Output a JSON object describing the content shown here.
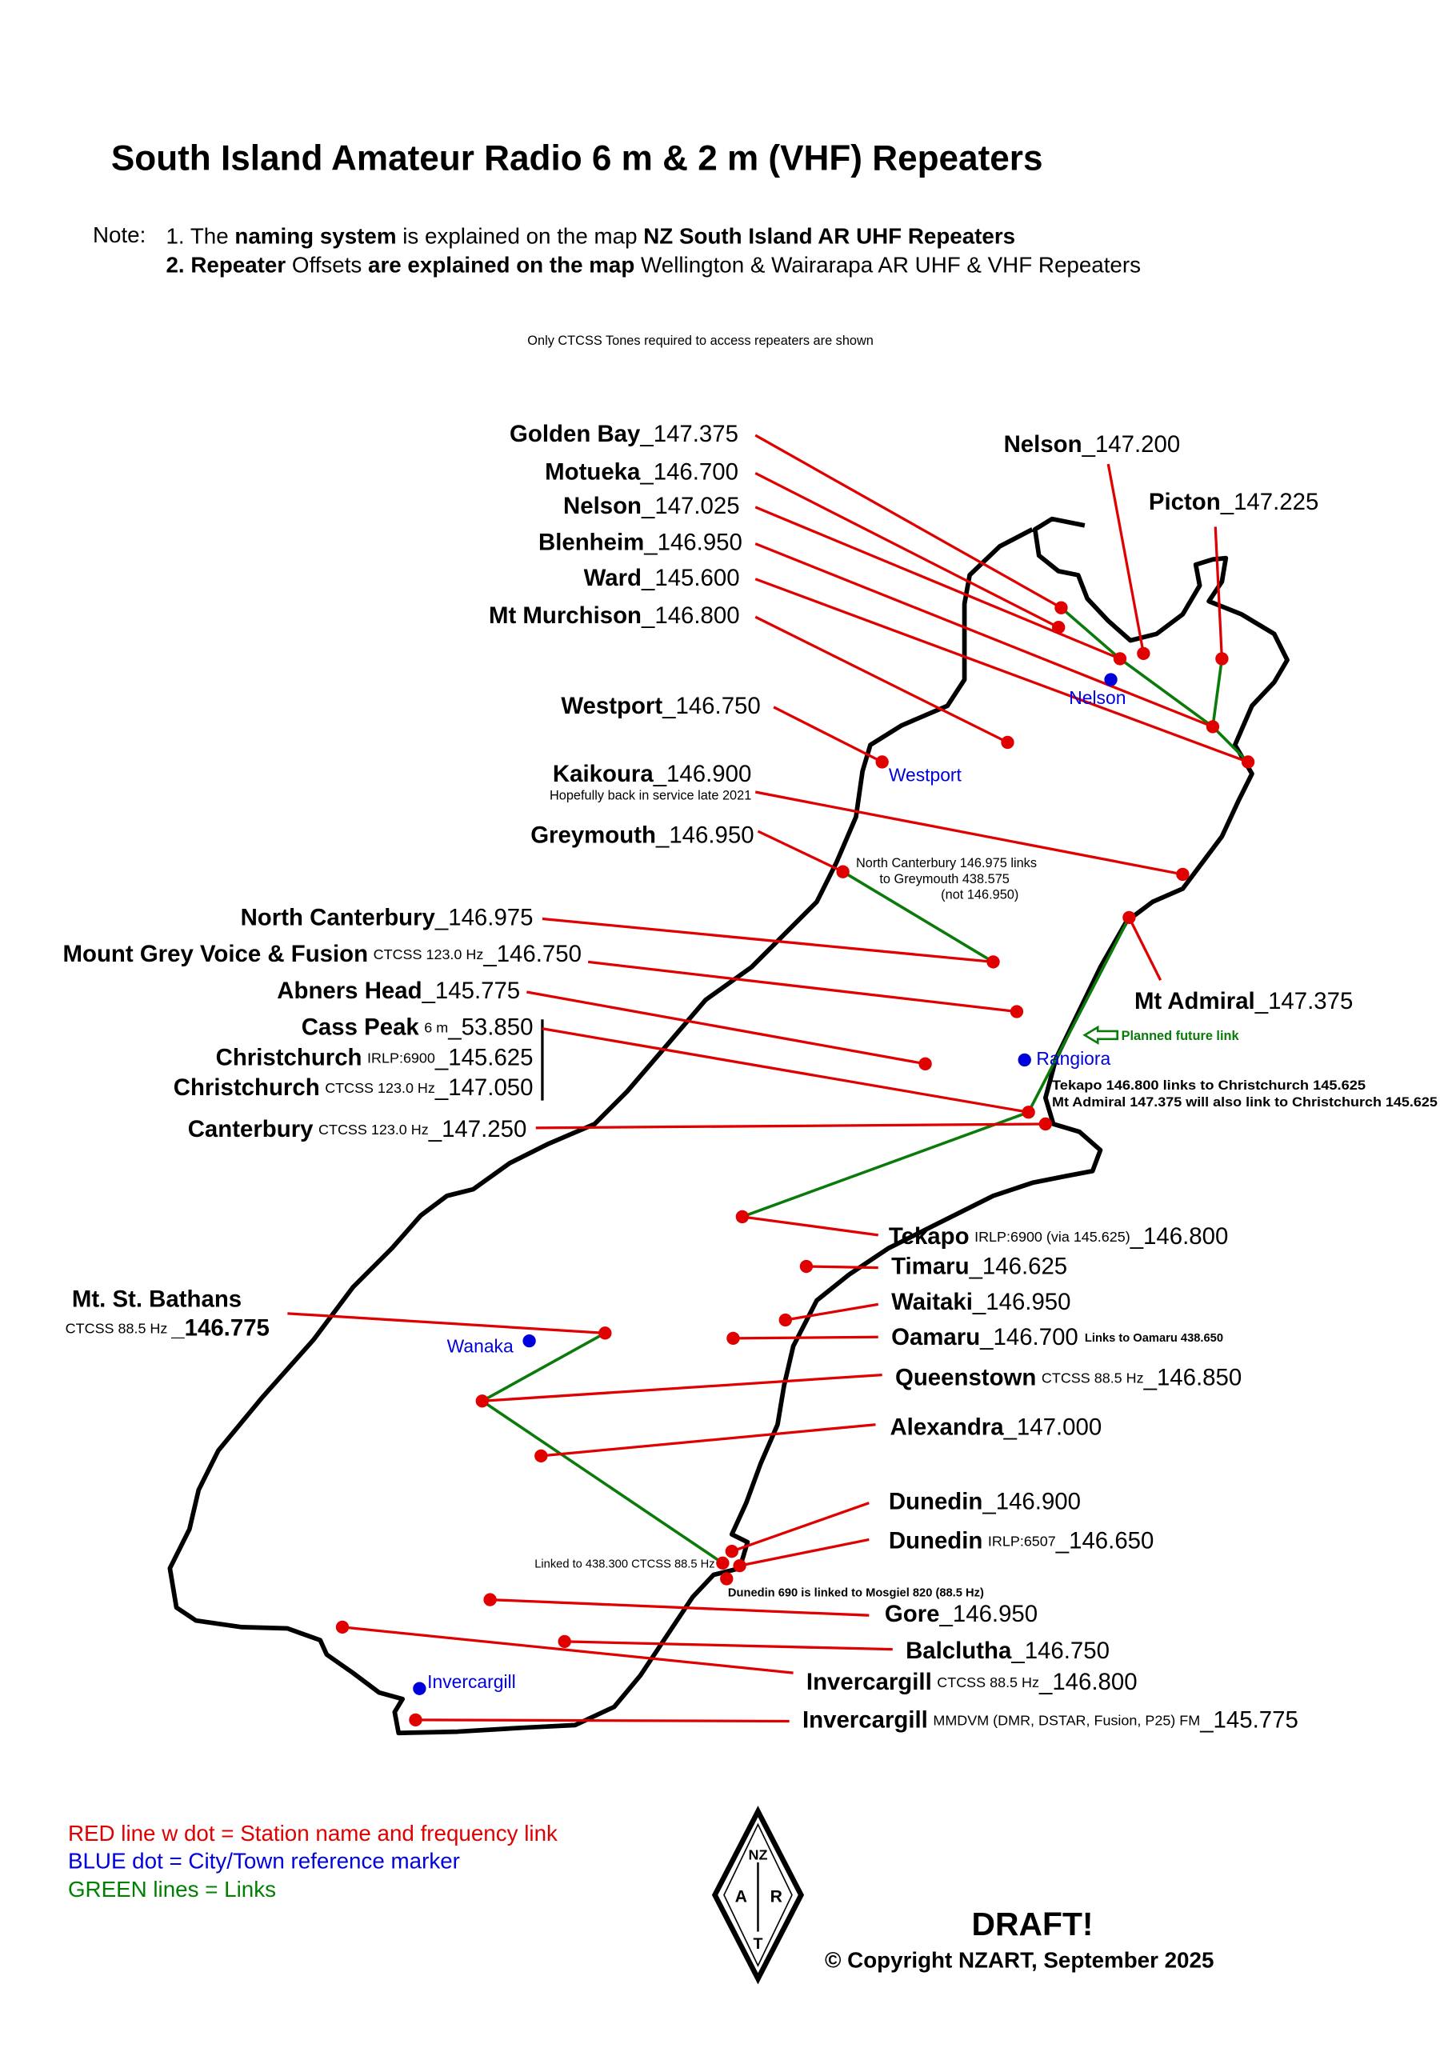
{
  "title": "South Island Amateur Radio 6 m & 2 m (VHF) Repeaters",
  "note_label": "Note:",
  "notes": [
    [
      {
        "text": "1. The ",
        "bold": false
      },
      {
        "text": "naming system",
        "bold": true
      },
      {
        "text": " is explained on the map ",
        "bold": false
      },
      {
        "text": "NZ South Island AR UHF Repeaters",
        "bold": true
      }
    ],
    [
      {
        "text": "2. Repeater",
        "bold": true
      },
      {
        "text": " Offsets ",
        "bold": false
      },
      {
        "text": "are explained on the map",
        "bold": true
      },
      {
        "text": " Wellington & Wairarapa AR UHF & VHF Repeaters",
        "bold": false
      }
    ]
  ],
  "ctcss_note": "Only CTCSS Tones required to access repeaters are shown",
  "repeaters": [
    {
      "name": "Golden Bay",
      "freq": "_147.375"
    },
    {
      "name": "Motueka",
      "freq": "_146.700"
    },
    {
      "name": "Nelson",
      "freq": "_147.025"
    },
    {
      "name": "Blenheim",
      "freq": "_146.950"
    },
    {
      "name": "Ward",
      "freq": "_145.600"
    },
    {
      "name": "Mt Murchison",
      "freq": "_146.800"
    },
    {
      "name": "Nelson",
      "freq": "_147.200"
    },
    {
      "name": "Picton",
      "freq": "_147.225"
    },
    {
      "name": "Westport",
      "freq": "_146.750"
    },
    {
      "name": "Kaikoura",
      "freq": "_146.900",
      "subnote": "Hopefully back in service late 2021"
    },
    {
      "name": "Greymouth",
      "freq": "_146.950"
    },
    {
      "name": "North Canterbury",
      "freq": "_146.975"
    },
    {
      "name": "Mount Grey Voice & Fusion",
      "detail": "CTCSS 123.0 Hz",
      "freq": "_146.750"
    },
    {
      "name": "Abners Head",
      "freq": "_145.775"
    },
    {
      "name": "Cass Peak",
      "detail": "6 m",
      "freq": "_53.850"
    },
    {
      "name": "Christchurch",
      "detail": "IRLP:6900",
      "freq": "_145.625"
    },
    {
      "name": "Christchurch",
      "detail": "CTCSS 123.0 Hz",
      "freq": "_147.050"
    },
    {
      "name": "Canterbury",
      "detail": "CTCSS 123.0 Hz",
      "freq": "_147.250"
    },
    {
      "name": "Mt Admiral",
      "freq": "_147.375"
    },
    {
      "name": "Tekapo",
      "detail": "IRLP:6900 (via 145.625)",
      "freq": "_146.800"
    },
    {
      "name": "Timaru",
      "freq": "_146.625"
    },
    {
      "name": "Waitaki",
      "freq": "_146.950"
    },
    {
      "name": "Oamaru",
      "freq": "_146.700",
      "note_after": "Links to Oamaru 438.650"
    },
    {
      "name": "Queenstown",
      "detail": "CTCSS 88.5 Hz",
      "freq": "_146.850"
    },
    {
      "name": "Alexandra",
      "freq": "_147.000"
    },
    {
      "name": "Mt. St. Bathans",
      "detail": "CTCSS 88.5 Hz",
      "freq": "_146.775"
    },
    {
      "name": "Dunedin",
      "freq": "_146.900"
    },
    {
      "name": "Dunedin",
      "detail": "IRLP:6507",
      "freq": "_146.650"
    },
    {
      "name": "Gore",
      "freq": "_146.950"
    },
    {
      "name": "Balclutha",
      "freq": "_146.750"
    },
    {
      "name": "Invercargill",
      "detail": "CTCSS 88.5 Hz",
      "freq": "_146.800"
    },
    {
      "name": "Invercargill",
      "detail": "MMDVM (DMR, DSTAR, Fusion, P25) FM",
      "freq": "_145.775"
    }
  ],
  "towns": [
    "Nelson",
    "Westport",
    "Rangiora",
    "Wanaka",
    "Invercargill"
  ],
  "map_notes": {
    "north_canterbury": [
      "North Canterbury 146.975 links",
      "to Greymouth 438.575",
      "(not 146.950)"
    ],
    "tekapo": [
      "Tekapo 146.800 links to Christchurch 145.625",
      "Mt Admiral 147.375 will also link to Christchurch 145.625"
    ],
    "dunedin_link": "Linked to 438.300 CTCSS 88.5 Hz",
    "dunedin_mosgiel": "Dunedin 690 is linked to Mosgiel 820 (88.5 Hz)",
    "planned": "Planned future link"
  },
  "legend": [
    {
      "text": "RED line w dot = Station name and frequency link",
      "color": "#e00000"
    },
    {
      "text": "BLUE dot = City/Town reference marker",
      "color": "#0000dd"
    },
    {
      "text": "GREEN lines = Links",
      "color": "#008000"
    }
  ],
  "draft": "DRAFT!",
  "copyright": "© Copyright NZART, September 2025",
  "logo": [
    "NZ",
    "A",
    "R",
    "T"
  ]
}
